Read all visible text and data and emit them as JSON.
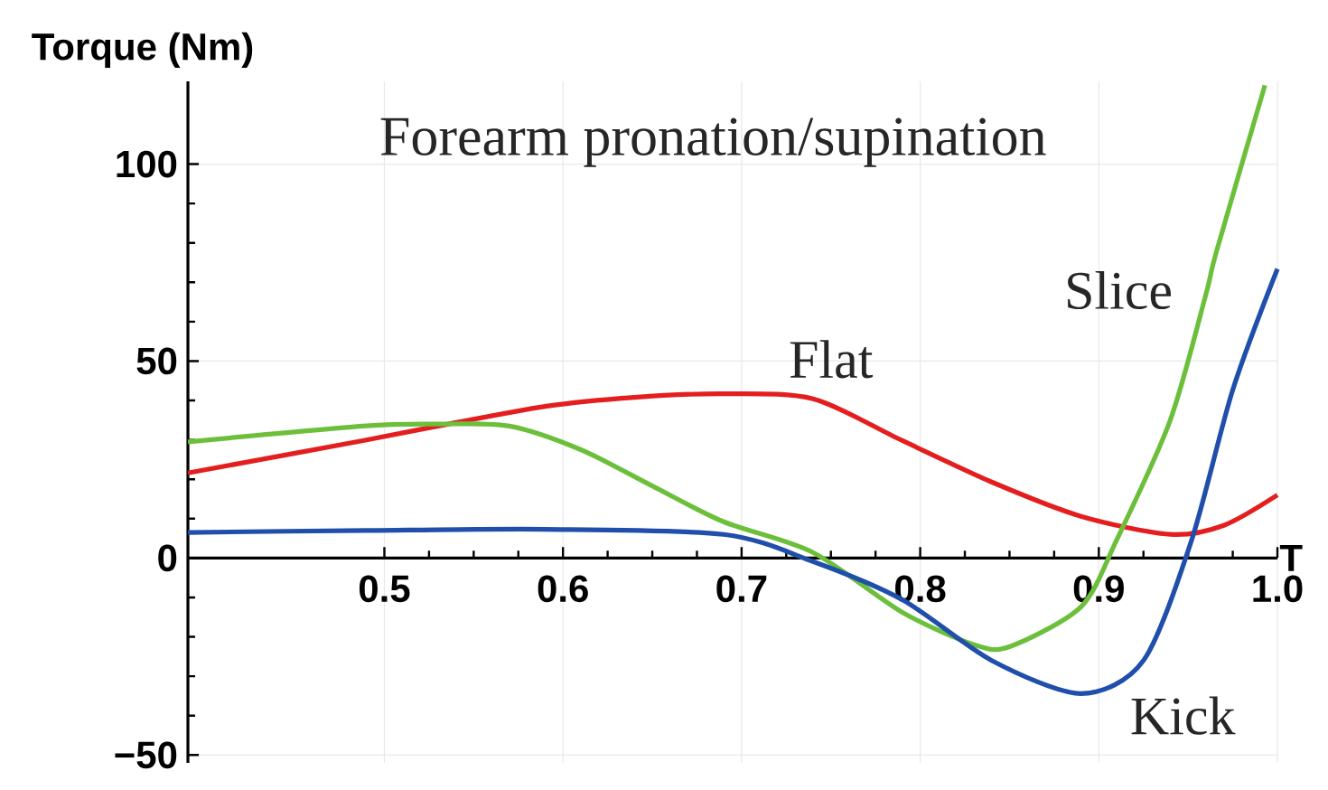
{
  "chart_data": {
    "type": "line",
    "title": "Forearm pronation/supination",
    "xlabel": "T",
    "ylabel": "Torque (Nm)",
    "xlim": [
      0.39,
      1.0
    ],
    "ylim": [
      -52,
      121
    ],
    "xticks": [
      0.5,
      0.6,
      0.7,
      0.8,
      0.9,
      {
        "value": 1.0,
        "label": "1.0"
      }
    ],
    "yticks": [
      {
        "value": -50,
        "label": "−50"
      },
      0,
      50,
      100
    ],
    "grid": true,
    "marker": "none",
    "line_style": "solid",
    "series": [
      {
        "name": "Flat",
        "color": "#e41e1e",
        "x": [
          0.39,
          0.488,
          0.53,
          0.59,
          0.64,
          0.69,
          0.74,
          0.79,
          0.84,
          0.89,
          0.94,
          0.97,
          1.0
        ],
        "values": [
          21.6,
          29.8,
          33.5,
          38.5,
          40.8,
          41.7,
          40.4,
          29.8,
          19.3,
          10.6,
          6,
          8.3,
          16
        ]
      },
      {
        "name": "Slice",
        "color": "#6cbf3a",
        "x": [
          0.39,
          0.488,
          0.53,
          0.57,
          0.61,
          0.65,
          0.69,
          0.74,
          0.79,
          0.83,
          0.85,
          0.89,
          0.91,
          0.94,
          0.96,
          0.966,
          0.993
        ],
        "values": [
          29.5,
          33.5,
          34,
          33.5,
          27.5,
          18.3,
          9.2,
          1.4,
          -13.8,
          -22,
          -22.5,
          -12.4,
          4.6,
          35,
          67,
          78,
          120
        ]
      },
      {
        "name": "Kick",
        "color": "#1f4faa",
        "x": [
          0.39,
          0.49,
          0.59,
          0.69,
          0.74,
          0.79,
          0.84,
          0.89,
          0.925,
          0.952,
          0.975,
          1.0
        ],
        "values": [
          6.5,
          7,
          7.3,
          6,
          -0.9,
          -10.6,
          -26,
          -34.4,
          -26,
          4.6,
          42.7,
          73.4
        ]
      }
    ]
  }
}
